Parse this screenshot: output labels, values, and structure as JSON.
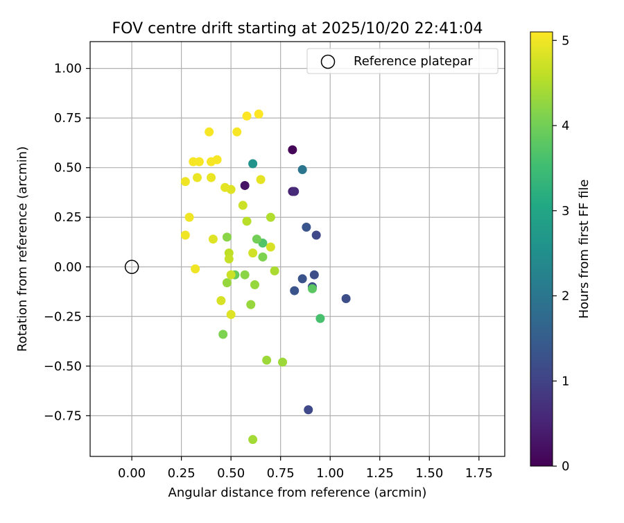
{
  "chart_data": {
    "type": "scatter",
    "title": "FOV centre drift starting at 2025/10/20 22:41:04",
    "xlabel": "Angular distance from reference (arcmin)",
    "ylabel": "Rotation from reference (arcmin)",
    "xlim": [
      -0.21,
      1.88
    ],
    "ylim": [
      -0.955,
      1.135
    ],
    "xticks": [
      0.0,
      0.25,
      0.5,
      0.75,
      1.0,
      1.25,
      1.5,
      1.75
    ],
    "xtick_labels": [
      "0.00",
      "0.25",
      "0.50",
      "0.75",
      "1.00",
      "1.25",
      "1.50",
      "1.75"
    ],
    "yticks": [
      1.0,
      0.75,
      0.5,
      0.25,
      0.0,
      -0.25,
      -0.5,
      -0.75
    ],
    "ytick_labels": [
      "1.00",
      "0.75",
      "0.50",
      "0.25",
      "0.00",
      "−0.25",
      "−0.50",
      "−0.75"
    ],
    "grid": true,
    "legend": {
      "position": "top-right",
      "entries": [
        {
          "label": "Reference platepar",
          "marker": "open-circle"
        }
      ]
    },
    "reference_point": {
      "x": 0.0,
      "y": 0.0
    },
    "colorbar": {
      "label": "Hours from first FF file",
      "min": 0,
      "max": 5.1,
      "ticks": [
        0,
        1,
        2,
        3,
        4,
        5
      ],
      "tick_labels": [
        "0",
        "1",
        "2",
        "3",
        "4",
        "5"
      ],
      "colormap": "viridis"
    },
    "points": [
      {
        "x": 0.81,
        "y": 0.59,
        "h": 0.05
      },
      {
        "x": 0.57,
        "y": 0.41,
        "h": 0.25
      },
      {
        "x": 0.81,
        "y": 0.38,
        "h": 0.5
      },
      {
        "x": 0.82,
        "y": 0.38,
        "h": 0.6
      },
      {
        "x": 0.89,
        "y": -0.72,
        "h": 1.1
      },
      {
        "x": 0.93,
        "y": 0.16,
        "h": 1.1
      },
      {
        "x": 1.08,
        "y": -0.16,
        "h": 1.2
      },
      {
        "x": 0.92,
        "y": -0.04,
        "h": 1.2
      },
      {
        "x": 0.91,
        "y": -0.1,
        "h": 1.2
      },
      {
        "x": 0.82,
        "y": -0.12,
        "h": 1.3
      },
      {
        "x": 0.86,
        "y": -0.06,
        "h": 1.3
      },
      {
        "x": 0.88,
        "y": 0.2,
        "h": 1.35
      },
      {
        "x": 0.86,
        "y": 0.49,
        "h": 2.0
      },
      {
        "x": 0.61,
        "y": 0.52,
        "h": 2.6
      },
      {
        "x": 0.95,
        "y": -0.26,
        "h": 3.6
      },
      {
        "x": 0.66,
        "y": 0.12,
        "h": 3.7
      },
      {
        "x": 0.91,
        "y": -0.11,
        "h": 3.8
      },
      {
        "x": 0.52,
        "y": -0.04,
        "h": 3.9
      },
      {
        "x": 0.63,
        "y": 0.14,
        "h": 4.0
      },
      {
        "x": 0.66,
        "y": 0.05,
        "h": 4.1
      },
      {
        "x": 0.46,
        "y": -0.34,
        "h": 4.1
      },
      {
        "x": 0.57,
        "y": -0.04,
        "h": 4.2
      },
      {
        "x": 0.48,
        "y": 0.15,
        "h": 4.2
      },
      {
        "x": 0.48,
        "y": -0.08,
        "h": 4.3
      },
      {
        "x": 0.6,
        "y": -0.19,
        "h": 4.3
      },
      {
        "x": 0.62,
        "y": -0.09,
        "h": 4.3
      },
      {
        "x": 0.68,
        "y": -0.47,
        "h": 4.35
      },
      {
        "x": 0.76,
        "y": -0.48,
        "h": 4.35
      },
      {
        "x": 0.61,
        "y": -0.87,
        "h": 4.4
      },
      {
        "x": 0.72,
        "y": -0.02,
        "h": 4.45
      },
      {
        "x": 0.7,
        "y": 0.25,
        "h": 4.5
      },
      {
        "x": 0.58,
        "y": 0.23,
        "h": 4.55
      },
      {
        "x": 0.49,
        "y": 0.07,
        "h": 4.6
      },
      {
        "x": 0.49,
        "y": 0.04,
        "h": 4.65
      },
      {
        "x": 0.5,
        "y": -0.04,
        "h": 4.7
      },
      {
        "x": 0.56,
        "y": 0.31,
        "h": 4.7
      },
      {
        "x": 0.61,
        "y": 0.07,
        "h": 4.75
      },
      {
        "x": 0.7,
        "y": 0.1,
        "h": 4.8
      },
      {
        "x": 0.45,
        "y": -0.17,
        "h": 4.8
      },
      {
        "x": 0.5,
        "y": -0.24,
        "h": 4.85
      },
      {
        "x": 0.41,
        "y": 0.14,
        "h": 4.85
      },
      {
        "x": 0.5,
        "y": 0.39,
        "h": 4.85
      },
      {
        "x": 0.65,
        "y": 0.44,
        "h": 4.9
      },
      {
        "x": 0.47,
        "y": 0.4,
        "h": 4.9
      },
      {
        "x": 0.4,
        "y": 0.45,
        "h": 4.95
      },
      {
        "x": 0.33,
        "y": 0.45,
        "h": 4.95
      },
      {
        "x": 0.27,
        "y": 0.43,
        "h": 5.0
      },
      {
        "x": 0.27,
        "y": 0.16,
        "h": 5.0
      },
      {
        "x": 0.29,
        "y": 0.25,
        "h": 5.0
      },
      {
        "x": 0.32,
        "y": -0.01,
        "h": 5.0
      },
      {
        "x": 0.31,
        "y": 0.53,
        "h": 5.05
      },
      {
        "x": 0.34,
        "y": 0.53,
        "h": 5.05
      },
      {
        "x": 0.4,
        "y": 0.53,
        "h": 5.05
      },
      {
        "x": 0.43,
        "y": 0.54,
        "h": 5.05
      },
      {
        "x": 0.39,
        "y": 0.68,
        "h": 5.05
      },
      {
        "x": 0.53,
        "y": 0.68,
        "h": 5.05
      },
      {
        "x": 0.58,
        "y": 0.76,
        "h": 5.1
      },
      {
        "x": 0.64,
        "y": 0.77,
        "h": 5.1
      }
    ]
  }
}
